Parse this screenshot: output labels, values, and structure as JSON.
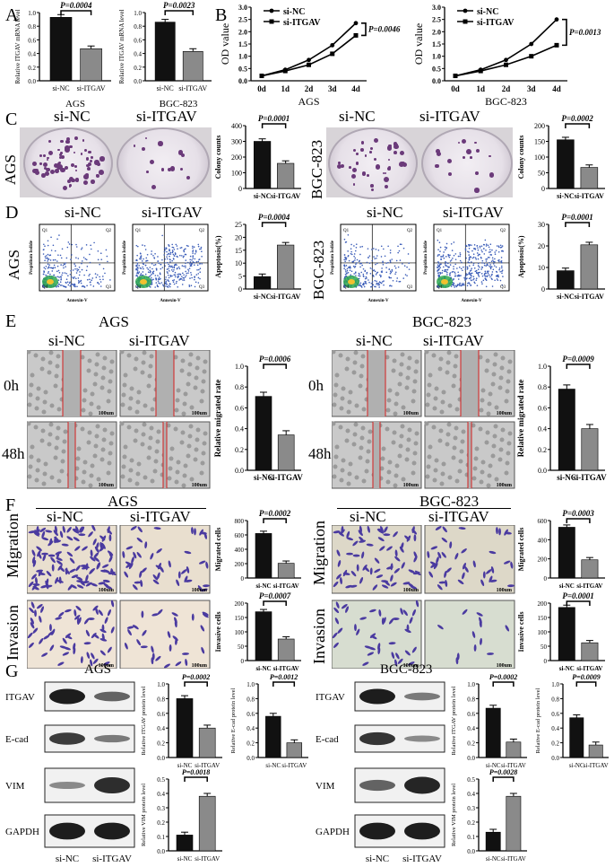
{
  "panels": {
    "A": {
      "letter": "A",
      "charts": [
        {
          "cell": "AGS",
          "ylabel": "Relative ITGAV mRNA level",
          "p": "P=0.0004",
          "ticks": [
            "0.0",
            "0.2",
            "0.4",
            "0.6",
            "0.8",
            "1.0"
          ],
          "ymax": 1.0
        },
        {
          "cell": "BGC-823",
          "ylabel": "Relative ITGAV mRNA level",
          "p": "P=0.0023",
          "ticks": [
            "0.0",
            "0.2",
            "0.4",
            "0.6",
            "0.8",
            "1.0"
          ],
          "ymax": 1.0
        }
      ]
    },
    "B": {
      "letter": "B",
      "charts": [
        {
          "cell": "AGS",
          "ylabel": "OD value",
          "p": "P=0.0046",
          "ticks": [
            "0.0",
            "0.5",
            "1.0",
            "1.5",
            "2.0",
            "2.5",
            "3.0"
          ],
          "xticks": [
            "0d",
            "1d",
            "2d",
            "3d",
            "4d"
          ]
        },
        {
          "cell": "BGC-823",
          "ylabel": "OD value",
          "p": "P=0.0013",
          "ticks": [
            "0.0",
            "0.5",
            "1.0",
            "1.5",
            "2.0",
            "2.5",
            "3.0"
          ],
          "xticks": [
            "0d",
            "1d",
            "2d",
            "3d",
            "4d"
          ]
        }
      ],
      "legend": [
        "si-NC",
        "si-ITGAV"
      ]
    },
    "C": {
      "letter": "C",
      "left": {
        "row_label": "AGS",
        "headers": [
          "si-NC",
          "si-ITGAV"
        ],
        "ylabel": "Colony counts",
        "p": "P=0.0001",
        "ticks": [
          "0",
          "100",
          "200",
          "300",
          "400"
        ]
      },
      "right": {
        "row_label": "BGC-823",
        "headers": [
          "si-NC",
          "si-ITGAV"
        ],
        "ylabel": "Colony counts",
        "p": "P=0.0002",
        "ticks": [
          "0",
          "50",
          "100",
          "150",
          "200"
        ]
      }
    },
    "D": {
      "letter": "D",
      "left": {
        "row_label": "AGS",
        "headers": [
          "si-NC",
          "si-ITGAV"
        ],
        "ylabel": "Apoptosis(%)",
        "p": "P=0.0004",
        "ticks": [
          "0",
          "5",
          "10",
          "15",
          "20",
          "25"
        ]
      },
      "right": {
        "row_label": "BGC-823",
        "headers": [
          "si-NC",
          "si-ITGAV"
        ],
        "ylabel": "Apoptosis(%)",
        "p": "P=0.0001",
        "ticks": [
          "0",
          "10",
          "20",
          "30"
        ]
      },
      "quadrants": [
        "Q1",
        "Q2",
        "Q3",
        "Q4"
      ],
      "axis_x": "Annexin-V",
      "axis_y": "Propidium Iodide"
    },
    "E": {
      "letter": "E",
      "left": {
        "cell": "AGS",
        "headers": [
          "si-NC",
          "si-ITGAV"
        ],
        "rows": [
          "0h",
          "48h"
        ],
        "ylabel": "Relative migrated rate",
        "p": "P=0.0006",
        "ticks": [
          "0.0",
          "0.2",
          "0.4",
          "0.6",
          "0.8",
          "1.0"
        ],
        "scale": "100um"
      },
      "right": {
        "cell": "BGC-823",
        "headers": [
          "si-NC",
          "si-ITGAV"
        ],
        "rows": [
          "0h",
          "48h"
        ],
        "ylabel": "Relative migrated rate",
        "p": "P=0.0009",
        "ticks": [
          "0.0",
          "0.2",
          "0.4",
          "0.6",
          "0.8",
          "1.0"
        ],
        "scale": "100um"
      }
    },
    "F": {
      "letter": "F",
      "left": {
        "cell": "AGS",
        "headers": [
          "si-NC",
          "si-ITGAV"
        ],
        "rows": [
          "Migration",
          "Invasion"
        ],
        "mig": {
          "ylabel": "Migrated cells",
          "p": "P=0.0002",
          "ticks": [
            "0",
            "200",
            "400",
            "600",
            "800"
          ]
        },
        "inv": {
          "ylabel": "Invasive cells",
          "p": "P=0.0007",
          "ticks": [
            "0",
            "50",
            "100",
            "150",
            "200"
          ]
        }
      },
      "right": {
        "cell": "BGC-823",
        "headers": [
          "si-NC",
          "si-ITGAV"
        ],
        "rows": [
          "Migration",
          "Invasion"
        ],
        "mig": {
          "ylabel": "Migrated cells",
          "p": "P=0.0003",
          "ticks": [
            "0",
            "200",
            "400",
            "600"
          ]
        },
        "inv": {
          "ylabel": "Invasive cells",
          "p": "P=0.0001",
          "ticks": [
            "0",
            "50",
            "100",
            "150",
            "200"
          ]
        }
      },
      "scale": "100um"
    },
    "G": {
      "letter": "G",
      "left": {
        "cell": "AGS",
        "bands": [
          "ITGAV",
          "E-cad",
          "VIM",
          "GAPDH"
        ],
        "lanes": [
          "si-NC",
          "si-ITGAV"
        ],
        "itgav": {
          "ylabel": "Relative ITGAV protein level",
          "p": "P=0.0002",
          "ticks": [
            "0.0",
            "0.2",
            "0.4",
            "0.6",
            "0.8",
            "1.0"
          ]
        },
        "ecad": {
          "ylabel": "Relative E-cad protein level",
          "p": "P=0.0012",
          "ticks": [
            "0.0",
            "0.2",
            "0.4",
            "0.6",
            "0.8",
            "1.0"
          ]
        },
        "vim": {
          "ylabel": "Relative VIM protein level",
          "p": "P=0.0018",
          "ticks": [
            "0.0",
            "0.1",
            "0.2",
            "0.3",
            "0.4",
            "0.5"
          ]
        }
      },
      "right": {
        "cell": "BGC-823",
        "bands": [
          "ITGAV",
          "E-cad",
          "VIM",
          "GAPDH"
        ],
        "lanes": [
          "si-NC",
          "si-ITGAV"
        ],
        "itgav": {
          "ylabel": "Relative ITGAV protein level",
          "p": "P=0.0002",
          "ticks": [
            "0.0",
            "0.2",
            "0.4",
            "0.6",
            "0.8",
            "1.0"
          ]
        },
        "ecad": {
          "ylabel": "Relative E-cad protein level",
          "p": "P=0.0009",
          "ticks": [
            "0.0",
            "0.2",
            "0.4",
            "0.6",
            "0.8",
            "1.0"
          ]
        },
        "vim": {
          "ylabel": "Relative VIM protein level",
          "p": "P=0.0028",
          "ticks": [
            "0.0",
            "0.1",
            "0.2",
            "0.3",
            "0.4",
            "0.5"
          ]
        }
      }
    },
    "bar_categories": [
      "si-NC",
      "si-ITGAV"
    ]
  },
  "chart_data": [
    {
      "type": "bar",
      "id": "A-AGS",
      "categories": [
        "si-NC",
        "si-ITGAV"
      ],
      "values": [
        0.93,
        0.47
      ],
      "ylim": [
        0,
        1.0
      ],
      "ylabel": "Relative ITGAV mRNA level",
      "xlabel": "AGS",
      "annotation": "P=0.0004"
    },
    {
      "type": "bar",
      "id": "A-BGC",
      "categories": [
        "si-NC",
        "si-ITGAV"
      ],
      "values": [
        0.86,
        0.43
      ],
      "ylim": [
        0,
        1.0
      ],
      "ylabel": "Relative ITGAV mRNA level",
      "xlabel": "BGC-823",
      "annotation": "P=0.0023"
    },
    {
      "type": "line",
      "id": "B-AGS",
      "x": [
        "0d",
        "1d",
        "2d",
        "3d",
        "4d"
      ],
      "series": [
        {
          "name": "si-NC",
          "values": [
            0.2,
            0.45,
            0.85,
            1.45,
            2.35
          ]
        },
        {
          "name": "si-ITGAV",
          "values": [
            0.2,
            0.4,
            0.65,
            1.1,
            1.85
          ]
        }
      ],
      "ylim": [
        0,
        3.0
      ],
      "ylabel": "OD value",
      "xlabel": "AGS",
      "annotation": "P=0.0046"
    },
    {
      "type": "line",
      "id": "B-BGC",
      "x": [
        "0d",
        "1d",
        "2d",
        "3d",
        "4d"
      ],
      "series": [
        {
          "name": "si-NC",
          "values": [
            0.2,
            0.45,
            0.85,
            1.5,
            2.5
          ]
        },
        {
          "name": "si-ITGAV",
          "values": [
            0.2,
            0.4,
            0.65,
            1.0,
            1.45
          ]
        }
      ],
      "ylim": [
        0,
        3.0
      ],
      "ylabel": "OD value",
      "xlabel": "BGC-823",
      "annotation": "P=0.0013"
    },
    {
      "type": "bar",
      "id": "C-AGS",
      "categories": [
        "si-NC",
        "si-ITGAV"
      ],
      "values": [
        300,
        160
      ],
      "ylim": [
        0,
        400
      ],
      "ylabel": "Colony counts",
      "annotation": "P=0.0001"
    },
    {
      "type": "bar",
      "id": "C-BGC",
      "categories": [
        "si-NC",
        "si-ITGAV"
      ],
      "values": [
        155,
        67
      ],
      "ylim": [
        0,
        200
      ],
      "ylabel": "Colony counts",
      "annotation": "P=0.0002"
    },
    {
      "type": "bar",
      "id": "D-AGS",
      "categories": [
        "si-NC",
        "si-ITGAV"
      ],
      "values": [
        4.8,
        17.0
      ],
      "ylim": [
        0,
        25
      ],
      "ylabel": "Apoptosis(%)",
      "annotation": "P=0.0004"
    },
    {
      "type": "bar",
      "id": "D-BGC",
      "categories": [
        "si-NC",
        "si-ITGAV"
      ],
      "values": [
        8.5,
        20.5
      ],
      "ylim": [
        0,
        30
      ],
      "ylabel": "Apoptosis(%)",
      "annotation": "P=0.0001"
    },
    {
      "type": "bar",
      "id": "E-AGS",
      "categories": [
        "si-NC",
        "si-ITGAV"
      ],
      "values": [
        0.71,
        0.34
      ],
      "ylim": [
        0,
        1.0
      ],
      "ylabel": "Relative migrated rate",
      "annotation": "P=0.0006"
    },
    {
      "type": "bar",
      "id": "E-BGC",
      "categories": [
        "si-NC",
        "si-ITGAV"
      ],
      "values": [
        0.78,
        0.4
      ],
      "ylim": [
        0,
        1.0
      ],
      "ylabel": "Relative migrated rate",
      "annotation": "P=0.0009"
    },
    {
      "type": "bar",
      "id": "F-AGS-mig",
      "categories": [
        "si-NC",
        "si-ITGAV"
      ],
      "values": [
        620,
        205
      ],
      "ylim": [
        0,
        800
      ],
      "ylabel": "Migrated cells",
      "annotation": "P=0.0002"
    },
    {
      "type": "bar",
      "id": "F-AGS-inv",
      "categories": [
        "si-NC",
        "si-ITGAV"
      ],
      "values": [
        170,
        75
      ],
      "ylim": [
        0,
        200
      ],
      "ylabel": "Invasive cells",
      "annotation": "P=0.0007"
    },
    {
      "type": "bar",
      "id": "F-BGC-mig",
      "categories": [
        "si-NC",
        "si-ITGAV"
      ],
      "values": [
        530,
        190
      ],
      "ylim": [
        0,
        600
      ],
      "ylabel": "Migrated cells",
      "annotation": "P=0.0003"
    },
    {
      "type": "bar",
      "id": "F-BGC-inv",
      "categories": [
        "si-NC",
        "si-ITGAV"
      ],
      "values": [
        185,
        62
      ],
      "ylim": [
        0,
        200
      ],
      "ylabel": "Invasive cells",
      "annotation": "P=0.0001"
    },
    {
      "type": "bar",
      "id": "G-AGS-itgav",
      "categories": [
        "si-NC",
        "si-ITGAV"
      ],
      "values": [
        0.8,
        0.4
      ],
      "ylim": [
        0,
        1.0
      ],
      "ylabel": "Relative ITGAV protein level",
      "annotation": "P=0.0002"
    },
    {
      "type": "bar",
      "id": "G-AGS-ecad",
      "categories": [
        "si-NC",
        "si-ITGAV"
      ],
      "values": [
        0.56,
        0.2
      ],
      "ylim": [
        0,
        1.0
      ],
      "ylabel": "Relative E-cad protein level",
      "annotation": "P=0.0012"
    },
    {
      "type": "bar",
      "id": "G-AGS-vim",
      "categories": [
        "si-NC",
        "si-ITGAV"
      ],
      "values": [
        0.11,
        0.38
      ],
      "ylim": [
        0,
        0.5
      ],
      "ylabel": "Relative VIM protein level",
      "annotation": "P=0.0018"
    },
    {
      "type": "bar",
      "id": "G-BGC-itgav",
      "categories": [
        "si-NC",
        "si-ITGAV"
      ],
      "values": [
        0.67,
        0.21
      ],
      "ylim": [
        0,
        1.0
      ],
      "ylabel": "Relative ITGAV protein level",
      "annotation": "P=0.0002"
    },
    {
      "type": "bar",
      "id": "G-BGC-ecad",
      "categories": [
        "si-NC",
        "si-ITGAV"
      ],
      "values": [
        0.54,
        0.17
      ],
      "ylim": [
        0,
        1.0
      ],
      "ylabel": "Relative E-cad protein level",
      "annotation": "P=0.0009"
    },
    {
      "type": "bar",
      "id": "G-BGC-vim",
      "categories": [
        "si-NC",
        "si-ITGAV"
      ],
      "values": [
        0.13,
        0.38
      ],
      "ylim": [
        0,
        0.5
      ],
      "ylabel": "Relative VIM protein level",
      "annotation": "P=0.0028"
    }
  ]
}
